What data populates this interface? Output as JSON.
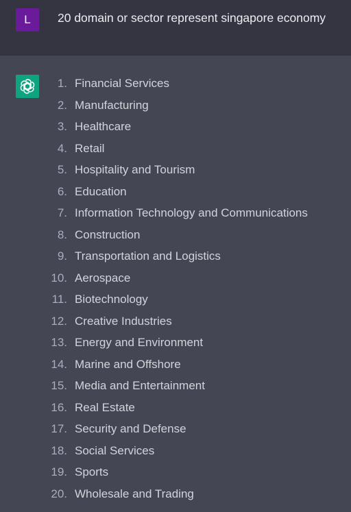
{
  "user": {
    "avatar_letter": "L",
    "message": "20 domain or sector represent singapore economy",
    "avatar_color": "#6a1b9a"
  },
  "assistant": {
    "avatar_icon": "openai-logo-icon",
    "avatar_color": "#10a37f",
    "items": [
      {
        "num": "1.",
        "label": "Financial Services"
      },
      {
        "num": "2.",
        "label": "Manufacturing"
      },
      {
        "num": "3.",
        "label": "Healthcare"
      },
      {
        "num": "4.",
        "label": "Retail"
      },
      {
        "num": "5.",
        "label": "Hospitality and Tourism"
      },
      {
        "num": "6.",
        "label": "Education"
      },
      {
        "num": "7.",
        "label": "Information Technology and Communications"
      },
      {
        "num": "8.",
        "label": "Construction"
      },
      {
        "num": "9.",
        "label": "Transportation and Logistics"
      },
      {
        "num": "10.",
        "label": "Aerospace"
      },
      {
        "num": "11.",
        "label": "Biotechnology"
      },
      {
        "num": "12.",
        "label": "Creative Industries"
      },
      {
        "num": "13.",
        "label": "Energy and Environment"
      },
      {
        "num": "14.",
        "label": "Marine and Offshore"
      },
      {
        "num": "15.",
        "label": "Media and Entertainment"
      },
      {
        "num": "16.",
        "label": "Real Estate"
      },
      {
        "num": "17.",
        "label": "Security and Defense"
      },
      {
        "num": "18.",
        "label": "Social Services"
      },
      {
        "num": "19.",
        "label": "Sports"
      },
      {
        "num": "20.",
        "label": "Wholesale and Trading"
      }
    ]
  }
}
